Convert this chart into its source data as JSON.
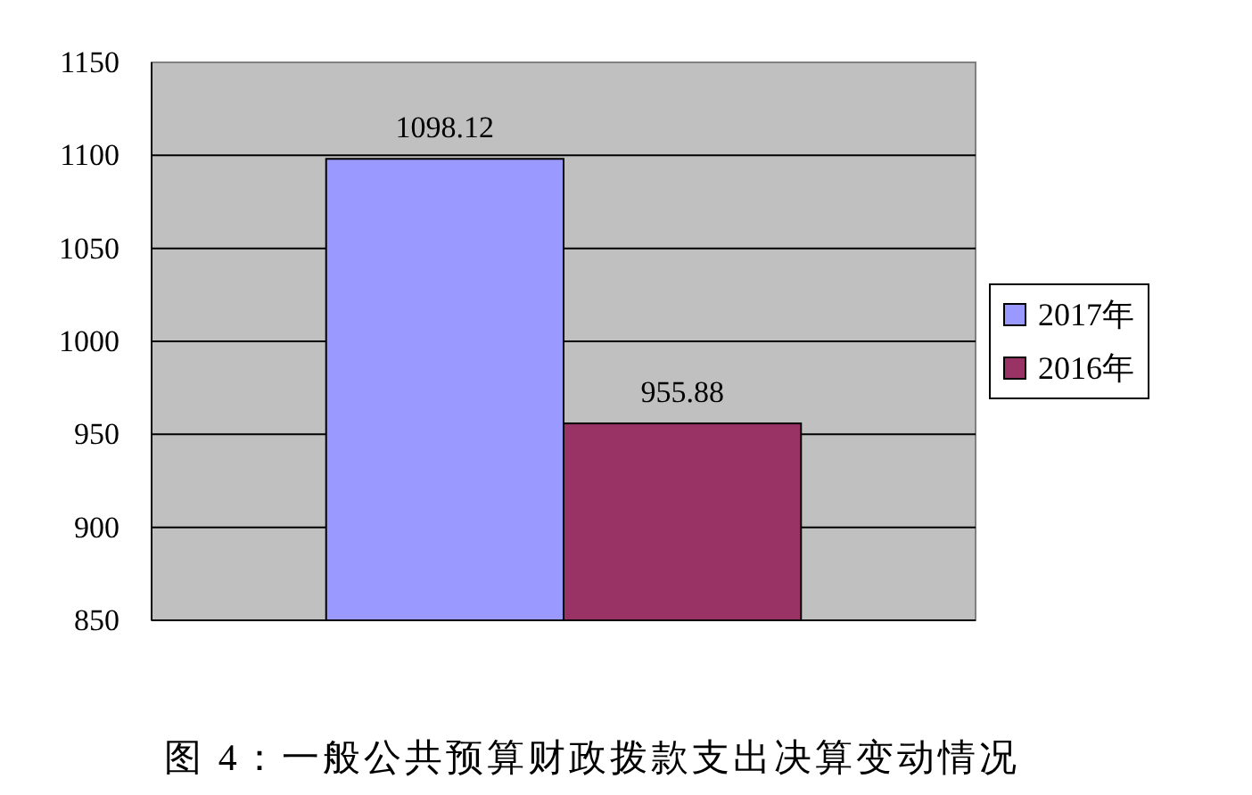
{
  "chart_data": {
    "type": "bar",
    "title": "图 4：一般公共预算财政拨款支出决算变动情况",
    "categories": [
      null
    ],
    "series": [
      {
        "name": "2017年",
        "color": "#9999ff",
        "values": [
          1098.12
        ]
      },
      {
        "name": "2016年",
        "color": "#993366",
        "values": [
          955.88
        ]
      }
    ],
    "ylim": [
      850,
      1150
    ],
    "yticks": [
      850,
      900,
      950,
      1000,
      1050,
      1100,
      1150
    ],
    "grid": "y",
    "legend": "right",
    "data_labels": true
  }
}
